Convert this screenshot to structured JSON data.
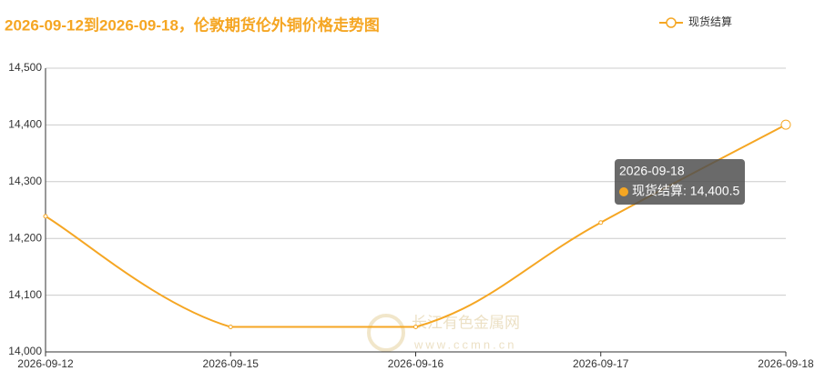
{
  "chart_data": {
    "type": "line",
    "title": "2026-09-12到2026-09-18，伦敦期货伦外铜价格走势图",
    "x": [
      "2026-09-12",
      "2026-09-15",
      "2026-09-16",
      "2026-09-17",
      "2026-09-18"
    ],
    "series": [
      {
        "name": "现货结算",
        "color": "#f5a623",
        "values": [
          14239,
          14044,
          14044,
          14228,
          14400.5
        ]
      }
    ],
    "ylim": [
      14000,
      14500
    ],
    "yticks": [
      {
        "value": 14000,
        "label": "14,000"
      },
      {
        "value": 14100,
        "label": "14,100"
      },
      {
        "value": 14200,
        "label": "14,200"
      },
      {
        "value": 14300,
        "label": "14,300"
      },
      {
        "value": 14400,
        "label": "14,400"
      },
      {
        "value": 14500,
        "label": "14,500"
      }
    ],
    "grid": true,
    "legend": "top-right",
    "tooltip": {
      "text": "现货结算: 14,400.5"
    },
    "watermark": {
      "name": "长江有色金属网",
      "url": "www.ccmn.cn"
    }
  }
}
